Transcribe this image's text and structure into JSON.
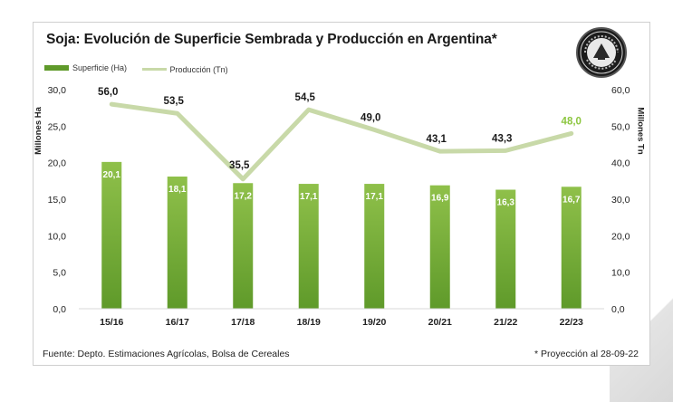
{
  "chart_data": {
    "type": "bar",
    "title": "Soja: Evolución de Superficie Sembrada y Producción en Argentina*",
    "categories": [
      "15/16",
      "16/17",
      "17/18",
      "18/19",
      "19/20",
      "20/21",
      "21/22",
      "22/23"
    ],
    "series": [
      {
        "name": "Superficie (Ha)",
        "type": "bar",
        "axis": "left",
        "values": [
          20.1,
          18.1,
          17.2,
          17.1,
          17.1,
          16.9,
          16.3,
          16.7
        ],
        "labels": [
          "20,1",
          "18,1",
          "17,2",
          "17,1",
          "17,1",
          "16,9",
          "16,3",
          "16,7"
        ]
      },
      {
        "name": "Producción (Tn)",
        "type": "line",
        "axis": "right",
        "values": [
          56.0,
          53.5,
          35.5,
          54.5,
          49.0,
          43.1,
          43.3,
          48.0
        ],
        "labels": [
          "56,0",
          "53,5",
          "35,5",
          "54,5",
          "49,0",
          "43,1",
          "43,3",
          "48,0"
        ]
      }
    ],
    "y_left": {
      "label": "Millones Ha",
      "range": [
        0,
        30
      ],
      "ticks": [
        "0,0",
        "5,0",
        "10,0",
        "15,0",
        "20,0",
        "25,0",
        "30,0"
      ]
    },
    "y_right": {
      "label": "Millones Tn",
      "range": [
        0,
        60
      ],
      "ticks": [
        "0,0",
        "10,0",
        "20,0",
        "30,0",
        "40,0",
        "50,0",
        "60,0"
      ]
    },
    "legend_position": "top-left",
    "grid": false
  },
  "footer": {
    "source": "Fuente: Depto. Estimaciones Agrícolas, Bolsa de Cereales",
    "note": "* Proyección al 28-09-22"
  },
  "colors": {
    "bar": "#5f9a2a",
    "bar_light": "#8fc04a",
    "line": "#c8d9a8",
    "projection_label": "#8cc63f",
    "text": "#1a1a1a"
  }
}
